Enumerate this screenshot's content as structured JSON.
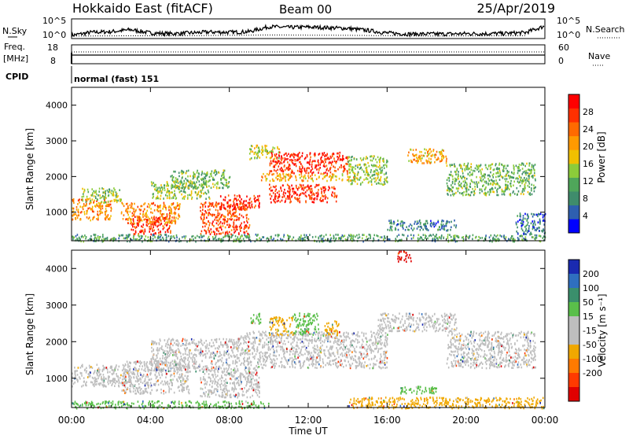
{
  "header": {
    "station": "Hokkaido East (fitACF)",
    "beam": "Beam 00",
    "date": "25/Apr/2019"
  },
  "aux": {
    "nsky_label": "N.Sky",
    "nsearch_label": "N.Search",
    "noise_ticks": [
      "10^5",
      "10^0"
    ],
    "freq_label": "Freq.",
    "freq_unit": "[MHz]",
    "freq_ticks": [
      "18",
      "8"
    ],
    "nave_label": "Nave",
    "nave_ticks": [
      "60",
      "0"
    ],
    "cpid_label": "CPID",
    "cpid_value": "normal (fast) 151"
  },
  "colors": {
    "power_scale": [
      "#0000ff",
      "#2e5fb0",
      "#3f8c6c",
      "#4fa65a",
      "#8ccc3a",
      "#f0c000",
      "#ff9a00",
      "#ff6a00",
      "#ff3000",
      "#ff0000"
    ],
    "velocity_scale": [
      "#1a2ab0",
      "#2f6fbf",
      "#3a8f6c",
      "#5abf4a",
      "#bebebe",
      "#bebebe",
      "#f0a800",
      "#ff7a00",
      "#ff3a00",
      "#e00000"
    ],
    "ground_scatter": "#bebebe"
  },
  "chart_data": [
    {
      "type": "line",
      "name": "noise",
      "x_range": [
        "00:00",
        "24:00"
      ],
      "ylim": [
        0,
        5
      ],
      "y_scale": "log",
      "series": [
        {
          "name": "N.Sky",
          "x": [
            0,
            1,
            2,
            3,
            4,
            5,
            6,
            7,
            8,
            9,
            10,
            11,
            12,
            13,
            14,
            15,
            16,
            17,
            18,
            19,
            20,
            21,
            22,
            23,
            24
          ],
          "y": [
            0.5,
            1.4,
            1.6,
            2.2,
            1.2,
            1.0,
            1.2,
            1.5,
            1.4,
            1.6,
            3.1,
            2.9,
            3.0,
            2.8,
            2.6,
            2.0,
            1.2,
            0.9,
            0.9,
            0.9,
            1.0,
            1.0,
            1.1,
            1.3,
            3.3
          ]
        },
        {
          "name": "N.Search",
          "x": [
            0,
            6,
            10,
            14,
            18,
            24
          ],
          "y": [
            0.3,
            0.4,
            0.6,
            0.5,
            0.3,
            0.4
          ]
        }
      ]
    },
    {
      "type": "line",
      "name": "frequency",
      "x_range": [
        "00:00",
        "24:00"
      ],
      "series": [
        {
          "name": "Freq.",
          "x": [
            0,
            24
          ],
          "y": [
            10.5,
            10.5
          ]
        },
        {
          "name": "Nave",
          "x": [
            0,
            24
          ],
          "y": [
            29,
            29
          ]
        }
      ]
    },
    {
      "type": "heatmap",
      "name": "power",
      "xlabel": "",
      "ylabel": "Slant Range [km]",
      "x_range": [
        0,
        24
      ],
      "ylim": [
        200,
        4500
      ],
      "y_ticks": [
        1000,
        2000,
        3000,
        4000
      ],
      "colorbar": {
        "label": "Power [dB]",
        "range": [
          0,
          32
        ],
        "ticks": [
          4,
          8,
          12,
          16,
          20,
          24,
          28
        ]
      },
      "regions": [
        {
          "t": [
            0.0,
            2.0
          ],
          "r": [
            800,
            1400
          ],
          "v": 22
        },
        {
          "t": [
            0.5,
            2.5
          ],
          "r": [
            1300,
            1700
          ],
          "v": 14
        },
        {
          "t": [
            2.5,
            5.5
          ],
          "r": [
            700,
            1300
          ],
          "v": 22
        },
        {
          "t": [
            3.0,
            5.0
          ],
          "r": [
            400,
            900
          ],
          "v": 27
        },
        {
          "t": [
            4.0,
            7.0
          ],
          "r": [
            1400,
            1900
          ],
          "v": 14
        },
        {
          "t": [
            5.0,
            8.0
          ],
          "r": [
            1700,
            2200
          ],
          "v": 12
        },
        {
          "t": [
            6.5,
            9.0
          ],
          "r": [
            400,
            1300
          ],
          "v": 26
        },
        {
          "t": [
            7.5,
            9.5
          ],
          "r": [
            1100,
            1500
          ],
          "v": 28
        },
        {
          "t": [
            9.0,
            10.5
          ],
          "r": [
            2500,
            2900
          ],
          "v": 16
        },
        {
          "t": [
            10.0,
            14.0
          ],
          "r": [
            2100,
            2700
          ],
          "v": 28
        },
        {
          "t": [
            10.0,
            13.5
          ],
          "r": [
            1300,
            1800
          ],
          "v": 28
        },
        {
          "t": [
            9.5,
            14.5
          ],
          "r": [
            1900,
            2100
          ],
          "v": 20
        },
        {
          "t": [
            14.0,
            16.0
          ],
          "r": [
            1800,
            2600
          ],
          "v": 14
        },
        {
          "t": [
            17.0,
            19.0
          ],
          "r": [
            2400,
            2800
          ],
          "v": 20
        },
        {
          "t": [
            16.0,
            19.5
          ],
          "r": [
            500,
            800
          ],
          "v": 8
        },
        {
          "t": [
            19.0,
            23.5
          ],
          "r": [
            1500,
            2400
          ],
          "v": 12
        },
        {
          "t": [
            22.5,
            24.0
          ],
          "r": [
            400,
            1000
          ],
          "v": 6
        },
        {
          "t": [
            0.0,
            24.0
          ],
          "r": [
            200,
            400
          ],
          "v": 10
        }
      ]
    },
    {
      "type": "heatmap",
      "name": "velocity",
      "xlabel": "Time UT",
      "ylabel": "Slant Range [km]",
      "x_ticks": [
        "00:00",
        "04:00",
        "08:00",
        "12:00",
        "16:00",
        "20:00",
        "00:00"
      ],
      "x_range": [
        0,
        24
      ],
      "ylim": [
        200,
        4500
      ],
      "y_ticks": [
        1000,
        2000,
        3000,
        4000
      ],
      "colorbar": {
        "label": "Velocity [m s⁻¹]",
        "ticks": [
          "200",
          "100",
          "50",
          "15",
          "-15",
          "-50",
          "-100",
          "-200"
        ]
      },
      "regions": [
        {
          "t": [
            0.0,
            3.0
          ],
          "r": [
            800,
            1400
          ],
          "c": 4
        },
        {
          "t": [
            2.5,
            6.0
          ],
          "r": [
            600,
            1500
          ],
          "c": 4
        },
        {
          "t": [
            4.0,
            8.5
          ],
          "r": [
            1200,
            2100
          ],
          "c": 4
        },
        {
          "t": [
            6.5,
            9.5
          ],
          "r": [
            500,
            1300
          ],
          "c": 4
        },
        {
          "t": [
            8.5,
            16.0
          ],
          "r": [
            1300,
            2300
          ],
          "c": 4
        },
        {
          "t": [
            9.0,
            9.6
          ],
          "r": [
            2500,
            2800
          ],
          "c": 3
        },
        {
          "t": [
            10.0,
            11.2
          ],
          "r": [
            2200,
            2700
          ],
          "c": 6
        },
        {
          "t": [
            11.2,
            12.5
          ],
          "r": [
            2200,
            2800
          ],
          "c": 3
        },
        {
          "t": [
            12.8,
            13.6
          ],
          "r": [
            2200,
            2600
          ],
          "c": 6
        },
        {
          "t": [
            15.5,
            19.5
          ],
          "r": [
            2300,
            2800
          ],
          "c": 4
        },
        {
          "t": [
            19.0,
            23.5
          ],
          "r": [
            1300,
            2300
          ],
          "c": 4
        },
        {
          "t": [
            16.5,
            18.5
          ],
          "r": [
            600,
            800
          ],
          "c": 3
        },
        {
          "t": [
            14.0,
            24.0
          ],
          "r": [
            200,
            500
          ],
          "c": 6
        },
        {
          "t": [
            0.0,
            10.0
          ],
          "r": [
            200,
            400
          ],
          "c": 3
        },
        {
          "t": [
            16.5,
            17.2
          ],
          "r": [
            4200,
            4500
          ],
          "c": 9
        }
      ]
    }
  ]
}
